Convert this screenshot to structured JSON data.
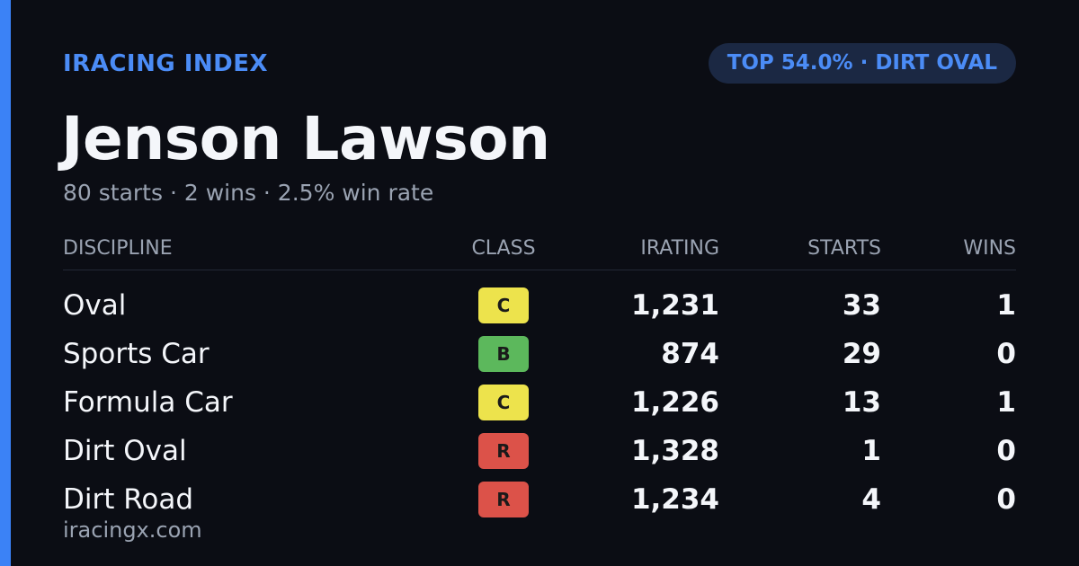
{
  "header": {
    "brand": "IRACING INDEX",
    "badge": "TOP 54.0% · DIRT OVAL"
  },
  "driver": {
    "name": "Jenson Lawson",
    "summary": "80 starts · 2 wins · 2.5% win rate"
  },
  "table": {
    "columns": [
      "DISCIPLINE",
      "CLASS",
      "IRATING",
      "STARTS",
      "WINS"
    ],
    "rows": [
      [
        "Oval",
        "C",
        "1,231",
        "33",
        "1"
      ],
      [
        "Sports Car",
        "B",
        "874",
        "29",
        "0"
      ],
      [
        "Formula Car",
        "C",
        "1,226",
        "13",
        "1"
      ],
      [
        "Dirt Oval",
        "R",
        "1,328",
        "1",
        "0"
      ],
      [
        "Dirt Road",
        "R",
        "1,234",
        "4",
        "0"
      ]
    ],
    "class_colors": [
      "#ede34c",
      "#5cb85c",
      "#ede34c",
      "#dc5249",
      "#dc5249"
    ]
  },
  "footer": {
    "site": "iracingx.com"
  }
}
